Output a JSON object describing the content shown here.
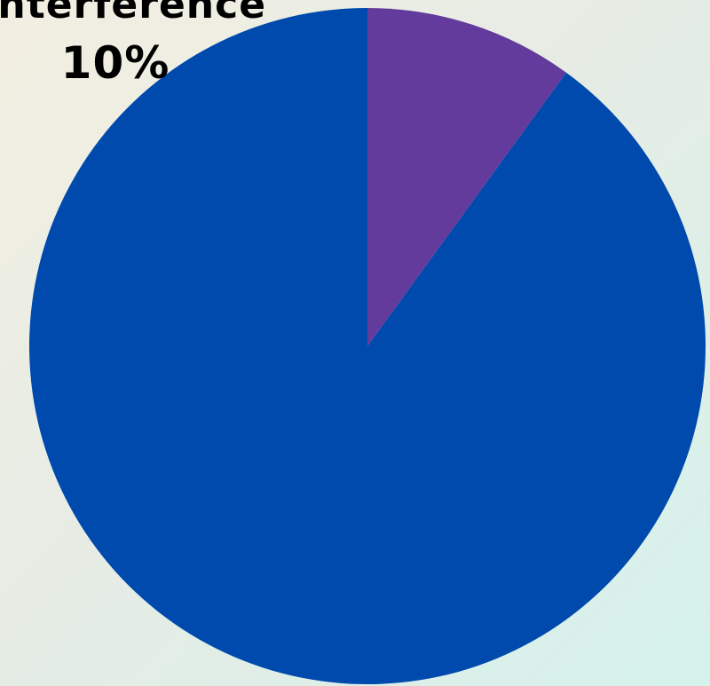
{
  "chart_data": {
    "type": "pie",
    "start": "top",
    "direction": "counterclockwise",
    "slices": [
      {
        "label": "",
        "value": 90,
        "color": "#004aad"
      },
      {
        "label": "Interference",
        "value": 10,
        "value_label": "10%",
        "color": "#633b9c"
      }
    ]
  }
}
